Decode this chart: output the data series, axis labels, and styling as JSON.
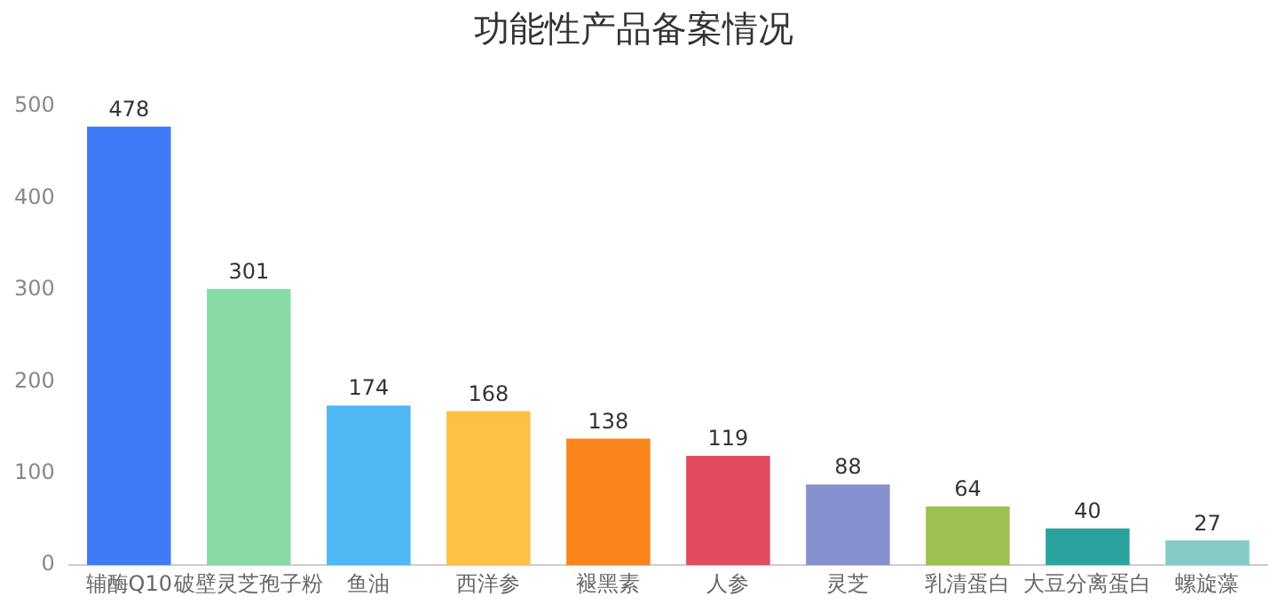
{
  "chart_data": {
    "type": "bar",
    "title": "功能性产品备案情况",
    "categories": [
      "辅酶Q10",
      "破壁灵芝孢子粉",
      "鱼油",
      "西洋参",
      "褪黑素",
      "人参",
      "灵芝",
      "乳清蛋白",
      "大豆分离蛋白",
      "螺旋藻"
    ],
    "values": [
      478,
      301,
      174,
      168,
      138,
      119,
      88,
      64,
      40,
      27
    ],
    "colors": [
      "#3d7bf7",
      "#88dba6",
      "#4eb8f2",
      "#fec144",
      "#f9851c",
      "#e24a5f",
      "#8790cf",
      "#9dc151",
      "#2aa39e",
      "#85cbc3"
    ],
    "ylim": [
      0,
      500
    ],
    "yticks": [
      0,
      100,
      200,
      300,
      400,
      500
    ],
    "grid": false,
    "data_labels": true,
    "legend": false
  }
}
